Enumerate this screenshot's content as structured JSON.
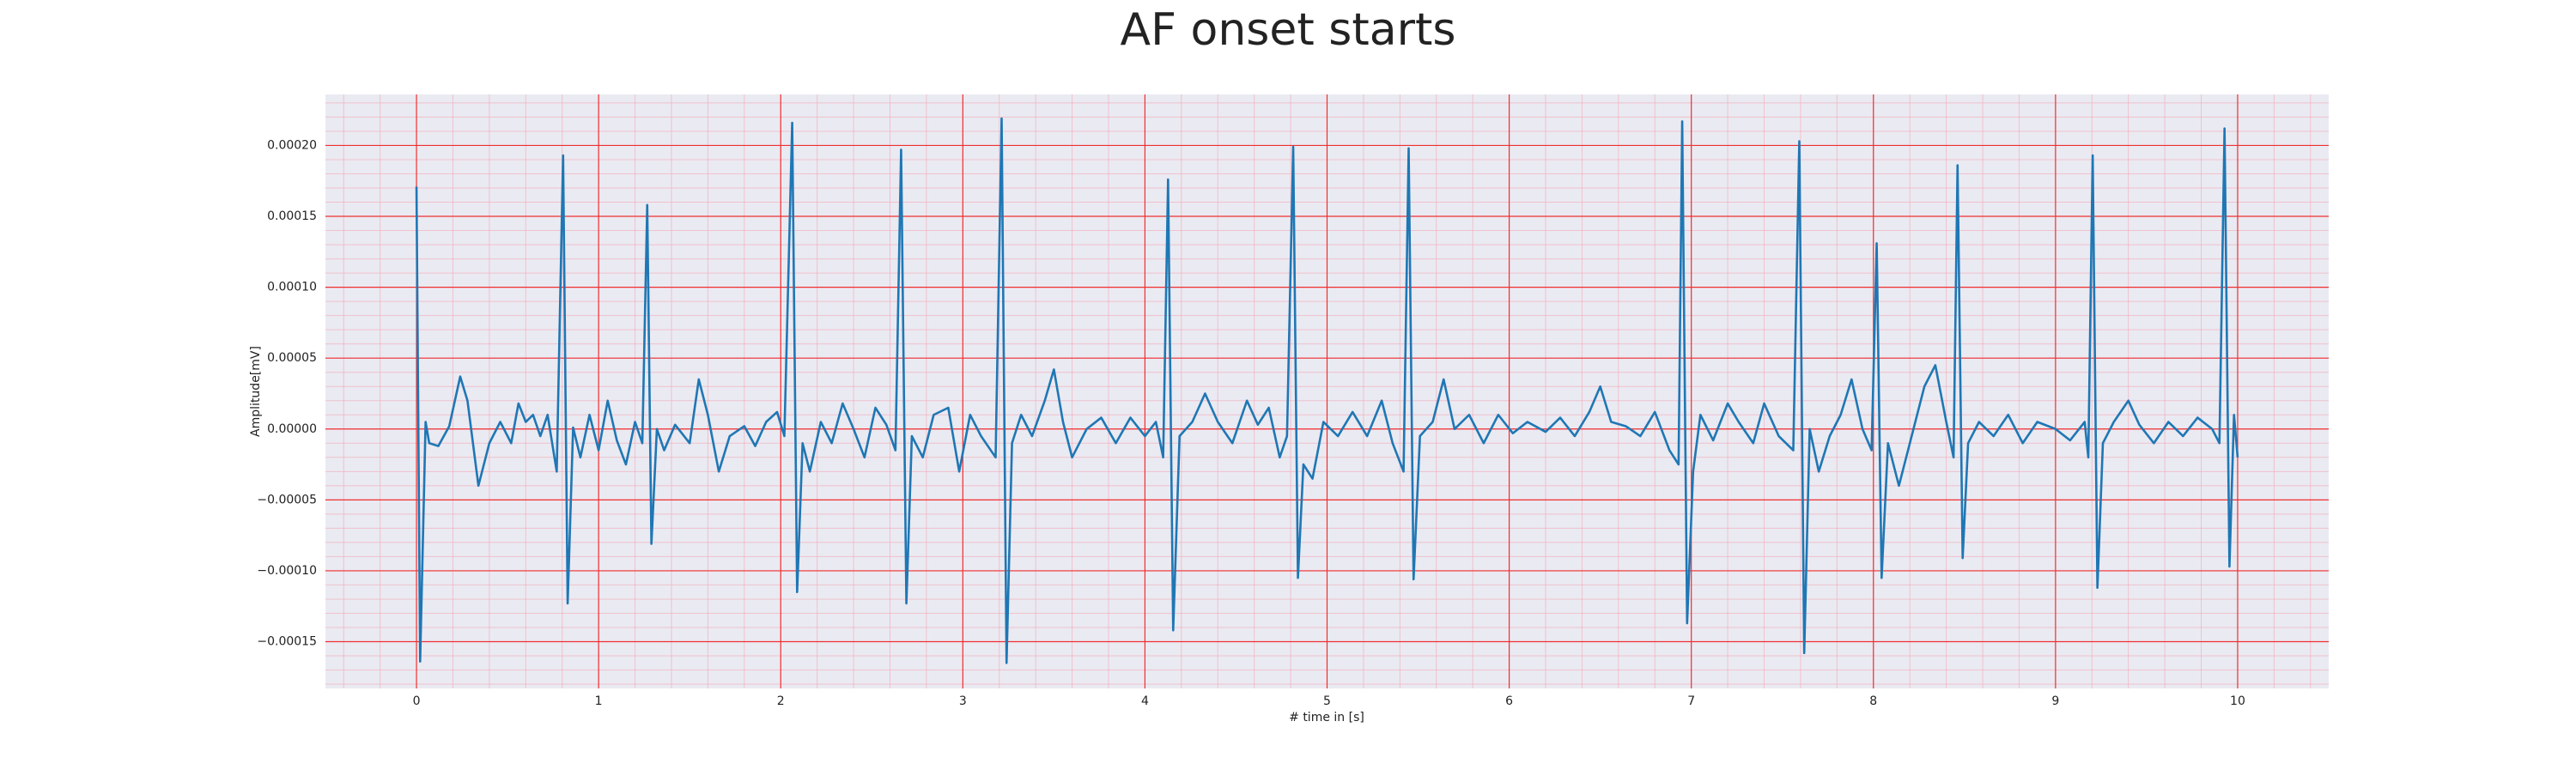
{
  "chart_data": {
    "type": "line",
    "title": "AF onset starts",
    "xlabel": "# time in [s]",
    "ylabel": "Amplitude[mV]",
    "xlim": [
      -0.5,
      10.5
    ],
    "ylim": [
      -0.000183,
      0.000236
    ],
    "xticks": [
      0,
      1,
      2,
      3,
      4,
      5,
      6,
      7,
      8,
      9,
      10
    ],
    "yticks": [
      {
        "value": -0.00015,
        "label": "−0.00015"
      },
      {
        "value": -0.0001,
        "label": "−0.00010"
      },
      {
        "value": -5e-05,
        "label": "−0.00005"
      },
      {
        "value": 0,
        "label": "0.00000"
      },
      {
        "value": 5e-05,
        "label": "0.00005"
      },
      {
        "value": 0.0001,
        "label": "0.00010"
      },
      {
        "value": 0.00015,
        "label": "0.00015"
      },
      {
        "value": 0.0002,
        "label": "0.00020"
      }
    ],
    "grid": true,
    "grid_color": "#f03030",
    "minor_grid_color": "#f4a6b4",
    "background": "#eaeaf2",
    "series": [
      {
        "color": "#1f77b4",
        "x": [
          0.0,
          0.02,
          0.05,
          0.07,
          0.12,
          0.18,
          0.24,
          0.28,
          0.34,
          0.4,
          0.46,
          0.52,
          0.56,
          0.6,
          0.64,
          0.68,
          0.72,
          0.77,
          0.805,
          0.83,
          0.86,
          0.9,
          0.95,
          1.0,
          1.05,
          1.1,
          1.15,
          1.2,
          1.24,
          1.267,
          1.29,
          1.32,
          1.36,
          1.42,
          1.5,
          1.55,
          1.6,
          1.66,
          1.72,
          1.8,
          1.86,
          1.92,
          1.98,
          2.02,
          2.063,
          2.09,
          2.12,
          2.16,
          2.22,
          2.28,
          2.34,
          2.4,
          2.46,
          2.52,
          2.58,
          2.63,
          2.661,
          2.69,
          2.72,
          2.78,
          2.84,
          2.92,
          2.98,
          3.04,
          3.1,
          3.18,
          3.213,
          3.24,
          3.27,
          3.32,
          3.38,
          3.45,
          3.5,
          3.55,
          3.6,
          3.68,
          3.76,
          3.84,
          3.92,
          4.0,
          4.06,
          4.1,
          4.127,
          4.155,
          4.19,
          4.26,
          4.33,
          4.4,
          4.48,
          4.56,
          4.62,
          4.68,
          4.74,
          4.78,
          4.814,
          4.84,
          4.87,
          4.92,
          4.98,
          5.06,
          5.14,
          5.22,
          5.3,
          5.36,
          5.42,
          5.448,
          5.475,
          5.51,
          5.58,
          5.64,
          5.7,
          5.78,
          5.86,
          5.94,
          6.02,
          6.1,
          6.2,
          6.28,
          6.36,
          6.44,
          6.5,
          6.56,
          6.64,
          6.72,
          6.8,
          6.88,
          6.93,
          6.95,
          6.977,
          7.01,
          7.05,
          7.12,
          7.2,
          7.26,
          7.34,
          7.4,
          7.48,
          7.56,
          7.593,
          7.62,
          7.65,
          7.7,
          7.76,
          7.82,
          7.88,
          7.94,
          7.99,
          8.018,
          8.045,
          8.08,
          8.14,
          8.2,
          8.28,
          8.34,
          8.4,
          8.44,
          8.462,
          8.49,
          8.52,
          8.58,
          8.66,
          8.74,
          8.82,
          8.9,
          9.0,
          9.08,
          9.16,
          9.18,
          9.204,
          9.23,
          9.26,
          9.32,
          9.4,
          9.46,
          9.54,
          9.62,
          9.7,
          9.78,
          9.86,
          9.9,
          9.928,
          9.955,
          9.98,
          10.0
        ],
        "values": [
          0.000171,
          -0.000164,
          5e-06,
          -1e-05,
          -1.2e-05,
          2e-06,
          3.7e-05,
          2e-05,
          -4e-05,
          -1e-05,
          5e-06,
          -1e-05,
          1.8e-05,
          5e-06,
          1e-05,
          -5e-06,
          1e-05,
          -3e-05,
          0.000193,
          -0.000123,
          1e-06,
          -2e-05,
          1e-05,
          -1.5e-05,
          2e-05,
          -8e-06,
          -2.5e-05,
          5e-06,
          -1e-05,
          0.000158,
          -8.1e-05,
          0.0,
          -1.5e-05,
          3e-06,
          -1e-05,
          3.5e-05,
          1e-05,
          -3e-05,
          -5e-06,
          2e-06,
          -1.2e-05,
          5e-06,
          1.2e-05,
          -5e-06,
          0.000216,
          -0.000115,
          -1e-05,
          -3e-05,
          5e-06,
          -1e-05,
          1.8e-05,
          0.0,
          -2e-05,
          1.5e-05,
          3e-06,
          -1.5e-05,
          0.000197,
          -0.000123,
          -5e-06,
          -2e-05,
          1e-05,
          1.5e-05,
          -3e-05,
          1e-05,
          -5e-06,
          -2e-05,
          0.000219,
          -0.000165,
          -1e-05,
          1e-05,
          -5e-06,
          2e-05,
          4.2e-05,
          5e-06,
          -2e-05,
          0.0,
          8e-06,
          -1e-05,
          8e-06,
          -5e-06,
          5e-06,
          -2e-05,
          0.000176,
          -0.000142,
          -5e-06,
          5e-06,
          2.5e-05,
          5e-06,
          -1e-05,
          2e-05,
          3e-06,
          1.5e-05,
          -2e-05,
          -5e-06,
          0.000199,
          -0.000105,
          -2.5e-05,
          -3.5e-05,
          5e-06,
          -5e-06,
          1.2e-05,
          -5e-06,
          2e-05,
          -1e-05,
          -3e-05,
          0.000198,
          -0.000106,
          -5e-06,
          5e-06,
          3.5e-05,
          0.0,
          1e-05,
          -1e-05,
          1e-05,
          -3e-06,
          5e-06,
          -2e-06,
          8e-06,
          -5e-06,
          1.2e-05,
          3e-05,
          5e-06,
          2e-06,
          -5e-06,
          1.2e-05,
          -1.5e-05,
          -2.5e-05,
          0.000217,
          -0.000137,
          -3e-05,
          1e-05,
          -8e-06,
          1.8e-05,
          5e-06,
          -1e-05,
          1.8e-05,
          -5e-06,
          -1.5e-05,
          0.000203,
          -0.000158,
          0.0,
          -3e-05,
          -5e-06,
          1e-05,
          3.5e-05,
          0.0,
          -1.5e-05,
          0.000131,
          -0.000105,
          -1e-05,
          -4e-05,
          -1e-05,
          3e-05,
          4.5e-05,
          5e-06,
          -2e-05,
          0.000186,
          -9.1e-05,
          -1e-05,
          5e-06,
          -5e-06,
          1e-05,
          -1e-05,
          5e-06,
          0.0,
          -8e-06,
          5e-06,
          -2e-05,
          0.000193,
          -0.000112,
          -1e-05,
          5e-06,
          2e-05,
          3e-06,
          -1e-05,
          5e-06,
          -5e-06,
          8e-06,
          0.0,
          -1e-05,
          0.000212,
          -9.7e-05,
          1e-05,
          -2e-05
        ]
      }
    ]
  }
}
